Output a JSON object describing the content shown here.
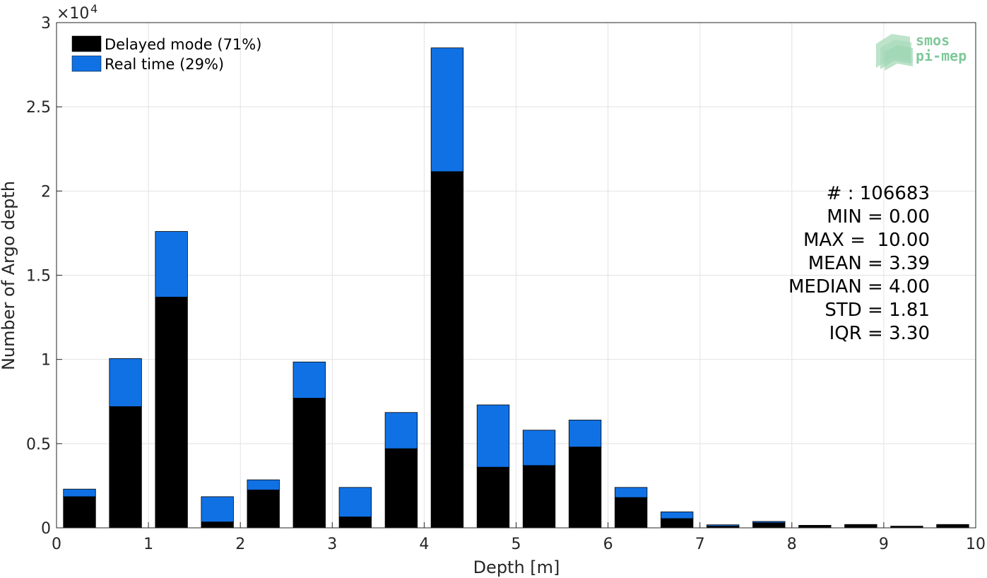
{
  "chart_data": {
    "type": "bar",
    "stacked": true,
    "xlabel": "Depth [m]",
    "ylabel": "Number of Argo depth",
    "exponent_label": "×10",
    "exponent_power": "4",
    "xlim": [
      0,
      10
    ],
    "ylim": [
      0,
      30000
    ],
    "x_ticks": [
      "0",
      "1",
      "2",
      "3",
      "4",
      "5",
      "6",
      "7",
      "8",
      "9",
      "10"
    ],
    "y_ticks": [
      "0",
      "0.5",
      "1",
      "1.5",
      "2",
      "2.5",
      "3"
    ],
    "grid": true,
    "legend_position": "top-left",
    "bin_centers": [
      0.25,
      0.75,
      1.25,
      1.75,
      2.25,
      2.75,
      3.25,
      3.75,
      4.25,
      4.75,
      5.25,
      5.75,
      6.25,
      6.75,
      7.25,
      7.75,
      8.25,
      8.75,
      9.25,
      9.75
    ],
    "series": [
      {
        "name": "Delayed mode (71%)",
        "color": "#000000",
        "values": [
          1850,
          7200,
          13700,
          350,
          2250,
          7700,
          650,
          4700,
          21150,
          3600,
          3700,
          4800,
          1800,
          550,
          100,
          300,
          150,
          200,
          100,
          200
        ]
      },
      {
        "name": "Real time (29%)",
        "color": "#1071e5",
        "values": [
          450,
          2850,
          3900,
          1500,
          600,
          2150,
          1750,
          2150,
          7350,
          3700,
          2100,
          1600,
          600,
          400,
          80,
          80,
          0,
          0,
          0,
          0
        ]
      }
    ],
    "stats": [
      "# : 106683",
      "MIN = 0.00",
      "MAX =  10.00",
      "MEAN = 3.39",
      "MEDIAN = 4.00",
      "STD = 1.81",
      "IQR = 3.30"
    ]
  },
  "logo": {
    "line1": "smos",
    "line2": "pi-mep",
    "color": "#7fc89a"
  }
}
